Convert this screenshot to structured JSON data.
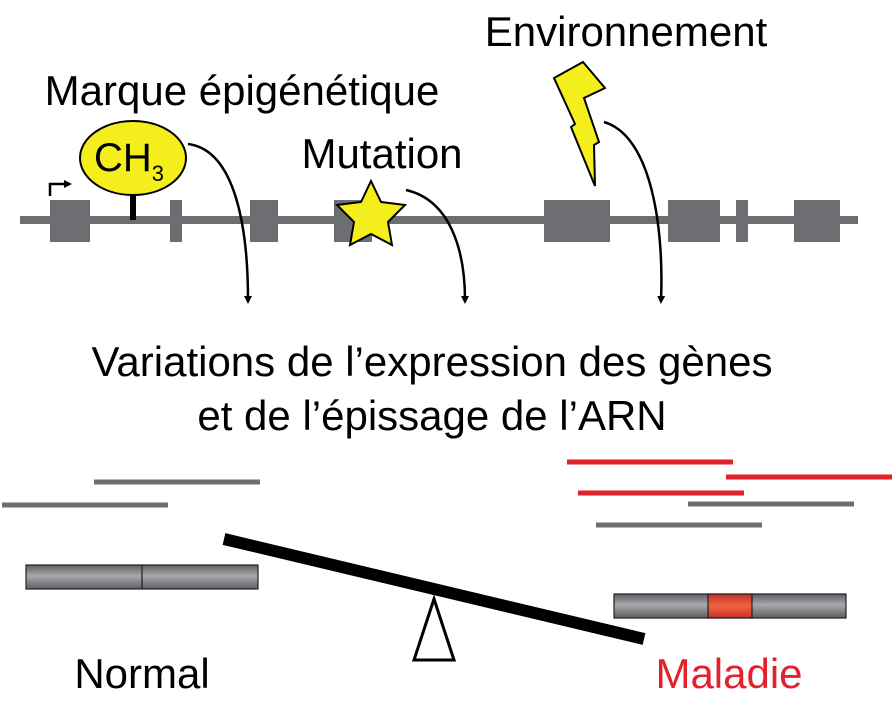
{
  "labels": {
    "environment": "Environnement",
    "epigenetic_mark": "Marque épigénétique",
    "methyl_main": "CH",
    "methyl_sub": "3",
    "mutation": "Mutation",
    "result_line1": "Variations de l’expression des gènes",
    "result_line2": "et de l’épissage de l’ARN",
    "normal": "Normal",
    "disease": "Maladie"
  },
  "colors": {
    "gene_gray": "#6d6e71",
    "highlight_yellow": "#f4ee1c",
    "disease_red": "#e2212a",
    "black": "#000000"
  },
  "icons": [
    "lightning-bolt-icon",
    "star-icon",
    "transcription-start-arrow-icon",
    "fulcrum-triangle-icon"
  ]
}
